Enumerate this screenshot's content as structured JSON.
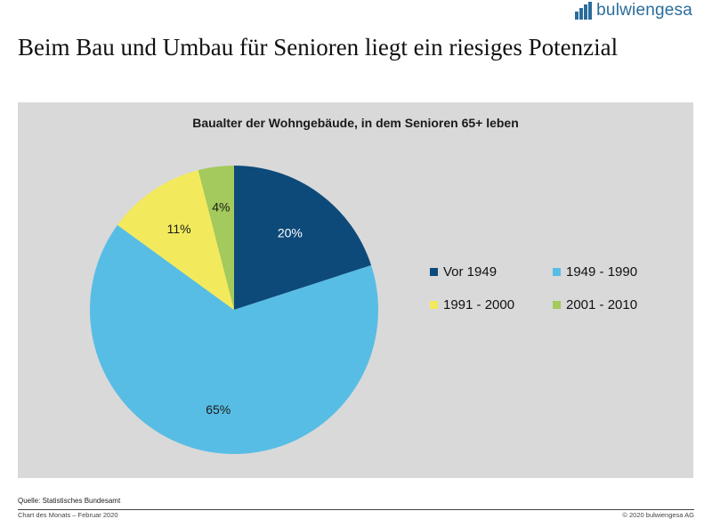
{
  "header": {
    "logo_text": "bulwiengesa",
    "headline": "Beim Bau und Umbau für Senioren liegt ein riesiges Potenzial"
  },
  "chart_data": {
    "type": "pie",
    "title": "Baualter der Wohngebäude, in dem Senioren 65+ leben",
    "categories": [
      "Vor 1949",
      "1949 - 1990",
      "1991 - 2000",
      "2001 - 2010"
    ],
    "values": [
      20,
      65,
      11,
      4
    ],
    "labels": [
      "20%",
      "65%",
      "11%",
      "4%"
    ],
    "colors": [
      "#0d4a7a",
      "#58bde5",
      "#f2ea5c",
      "#a4c95c"
    ],
    "label_colors": [
      "#ffffff",
      "#1a1a1a",
      "#1a1a1a",
      "#1a1a1a"
    ],
    "legend_position": "right"
  },
  "footer": {
    "source": "Quelle: Statistisches Bundesamt",
    "left": "Chart des Monats – Februar 2020",
    "right": "© 2020 bulwiengesa AG"
  }
}
